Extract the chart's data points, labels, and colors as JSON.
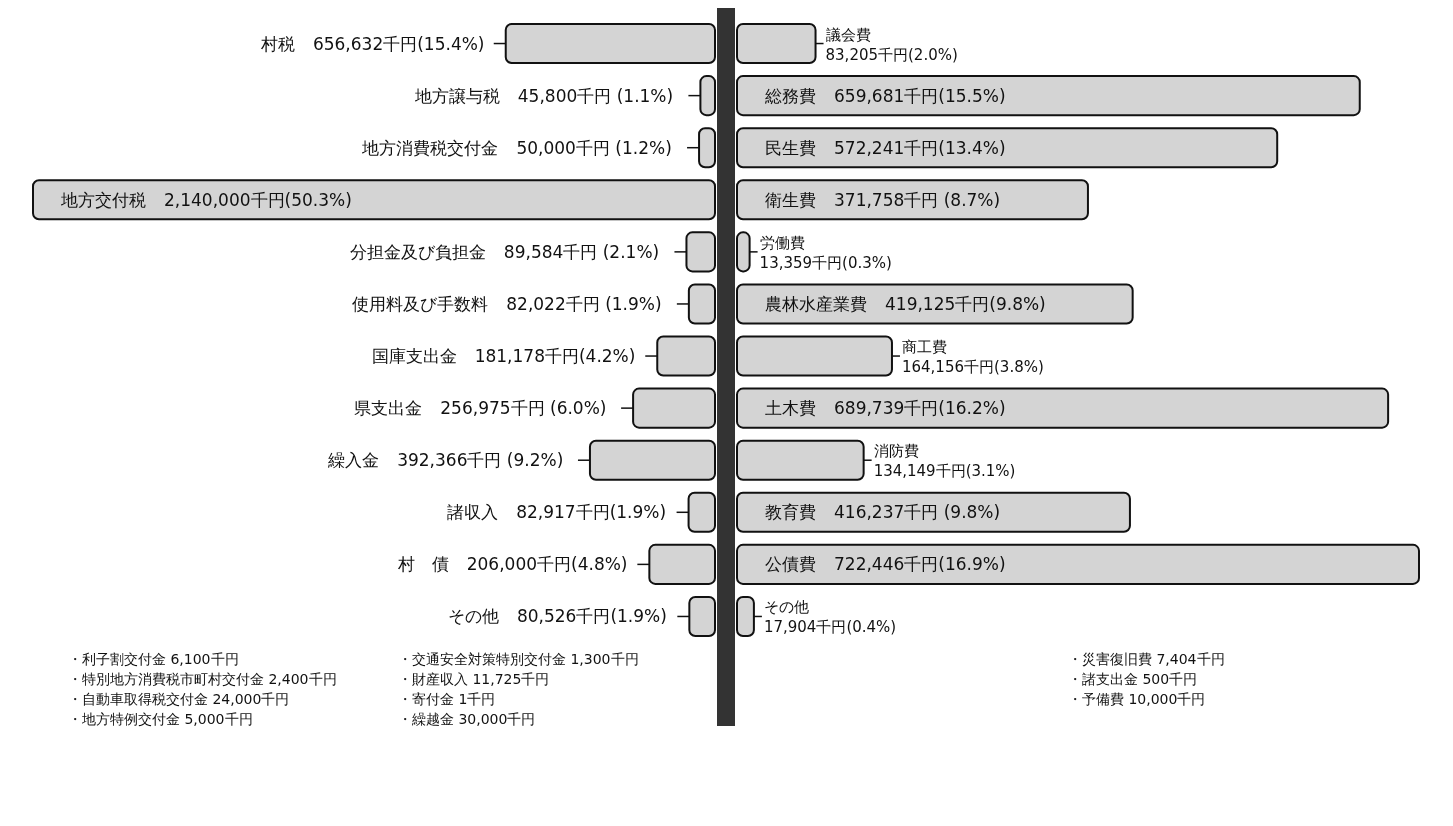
{
  "chart_data": [
    {
      "type": "bar",
      "orientation": "horizontal",
      "color": "#d4d4d4",
      "categories": [
        "村税",
        "地方譲与税",
        "地方消費税交付金",
        "地方交付税",
        "分担金及び負担金",
        "使用料及び手数料",
        "国庫支出金",
        "県支出金",
        "繰入金",
        "諸収入",
        "村　債",
        "その他"
      ],
      "values": [
        656632,
        45800,
        50000,
        2140000,
        89584,
        82022,
        181178,
        256975,
        392366,
        82917,
        206000,
        80526
      ],
      "value_labels": [
        "656,632千円(15.4%)",
        "45,800千円 (1.1%)",
        "50,000千円 (1.2%)",
        "2,140,000千円(50.3%)",
        "89,584千円 (2.1%)",
        "82,022千円 (1.9%)",
        "181,178千円(4.2%)",
        "256,975千円 (6.0%)",
        "392,366千円 (9.2%)",
        "82,917千円(1.9%)",
        "206,000千円(4.8%)",
        "80,526千円(1.9%)"
      ],
      "annotations": [
        "・利子割交付金 6,100千円",
        "・特別地方消費税市町村交付金 2,400千円",
        "・自動車取得税交付金 24,000千円",
        "・地方特例交付金 5,000千円",
        "・交通安全対策特別交付金 1,300千円",
        "・財産収入 11,725千円",
        "・寄付金 1千円",
        "・繰越金 30,000千円"
      ]
    },
    {
      "type": "bar",
      "orientation": "horizontal",
      "color": "#d4d4d4",
      "categories": [
        "議会費",
        "総務費",
        "民生費",
        "衛生費",
        "労働費",
        "農林水産業費",
        "商工費",
        "土木費",
        "消防費",
        "教育費",
        "公債費",
        "その他"
      ],
      "values": [
        83205,
        659681,
        572241,
        371758,
        13359,
        419125,
        164156,
        689739,
        134149,
        416237,
        722446,
        17904
      ],
      "value_labels": [
        "83,205千円(2.0%)",
        "659,681千円(15.5%)",
        "572,241千円(13.4%)",
        "371,758千円 (8.7%)",
        "13,359千円(0.3%)",
        "419,125千円(9.8%)",
        "164,156千円(3.8%)",
        "689,739千円(16.2%)",
        "134,149千円(3.1%)",
        "416,237千円 (9.8%)",
        "722,446千円(16.9%)",
        "17,904千円(0.4%)"
      ],
      "annotations": [
        "・災害復旧費 7,404千円",
        "・諸支出金 500千円",
        "・予備費 10,000千円"
      ]
    }
  ]
}
